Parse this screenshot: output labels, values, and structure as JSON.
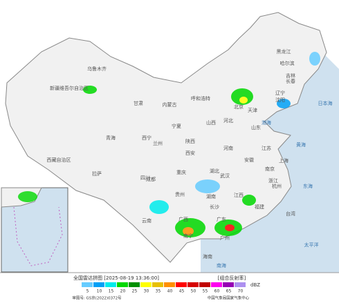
{
  "map": {
    "labels": [
      "新疆维吾尔自治区",
      "西藏自治区",
      "青海",
      "甘肃",
      "内蒙古",
      "黑龙江",
      "吉林",
      "辽宁",
      "北京",
      "天津",
      "河北",
      "山西",
      "陕西",
      "宁夏",
      "河南",
      "山东",
      "四川",
      "重庆",
      "湖北",
      "安徽",
      "江苏",
      "上海",
      "浙江",
      "湖南",
      "江西",
      "贵州",
      "云南",
      "广西",
      "广东",
      "福建",
      "台湾",
      "海南",
      "乌鲁木齐",
      "拉萨",
      "西宁",
      "兰州",
      "呼和浩特",
      "哈尔滨",
      "长春",
      "沈阳",
      "西安",
      "成都",
      "武汉",
      "南京",
      "杭州",
      "长沙",
      "南宁",
      "广州",
      "渤海",
      "黄海",
      "东海",
      "南海",
      "太平洋",
      "日本海"
    ]
  },
  "legend": {
    "title": "全国雷达拼图 [2025-08-19 13:36:00]",
    "product": "[组合反射率]",
    "unit": "dBZ",
    "levels": [
      5,
      10,
      15,
      20,
      25,
      30,
      35,
      40,
      45,
      50,
      55,
      60,
      65,
      70
    ],
    "colors": [
      "#66ccff",
      "#00a0f6",
      "#00ecec",
      "#00d800",
      "#019000",
      "#ffff00",
      "#e7c000",
      "#ff9000",
      "#ff0000",
      "#d60000",
      "#c00000",
      "#ff00f0",
      "#9600b4",
      "#ad90f0"
    ],
    "approval": "审图号: GS京(2022)0372号",
    "source": "中国气象局国家气象中心"
  }
}
